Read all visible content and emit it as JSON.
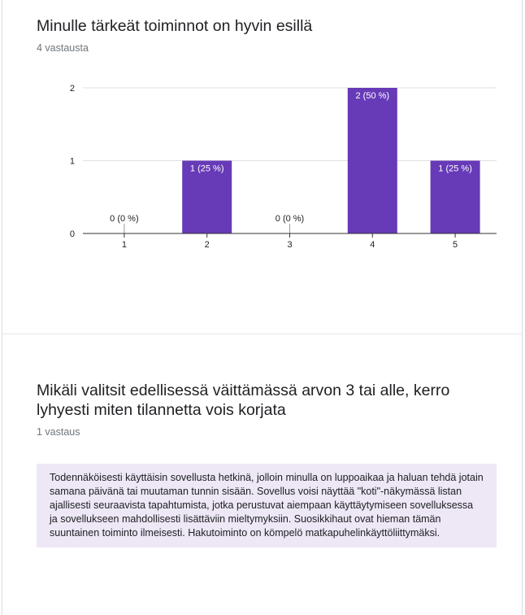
{
  "questions": [
    {
      "title": "Minulle tärkeät toiminnot on hyvin esillä",
      "response_count": "4 vastausta"
    },
    {
      "title_line1": "Mikäli valitsit edellisessä väittämässä arvon 3 tai alle, kerro",
      "title_line2": "lyhyesti miten tilannetta vois korjata",
      "response_count": "1 vastaus",
      "response_text": "Todennäköisesti käyttäisin sovellusta hetkinä, jolloin minulla on luppoaikaa ja haluan tehdä jotain samana päivänä tai muutaman tunnin sisään. Sovellus voisi näyttää \"koti\"-näkymässä listan ajallisesti seuraavista tapahtumista, jotka perustuvat aiempaan käyttäytymiseen sovelluksessa ja sovellukseen mahdollisesti lisättäviin mieltymyksiin. Suosikkihaut ovat hieman tämän suuntainen toiminto ilmeisesti. Hakutoiminto on kömpelö matkapuhelinkäyttöliittymäksi."
    }
  ],
  "colors": {
    "bar": "#673ab7",
    "grid": "#e0e0e0",
    "axis": "#333333"
  },
  "chart_data": {
    "type": "bar",
    "title": "Minulle tärkeät toiminnot on hyvin esillä",
    "categories": [
      "1",
      "2",
      "3",
      "4",
      "5"
    ],
    "values": [
      0,
      1,
      0,
      2,
      1
    ],
    "data_labels": [
      "0 (0 %)",
      "1 (25 %)",
      "0 (0 %)",
      "2 (50 %)",
      "1 (25 %)"
    ],
    "yticks": [
      "0",
      "1",
      "2"
    ],
    "ylim": [
      0,
      2
    ],
    "xlabel": "",
    "ylabel": "",
    "grid": true
  }
}
